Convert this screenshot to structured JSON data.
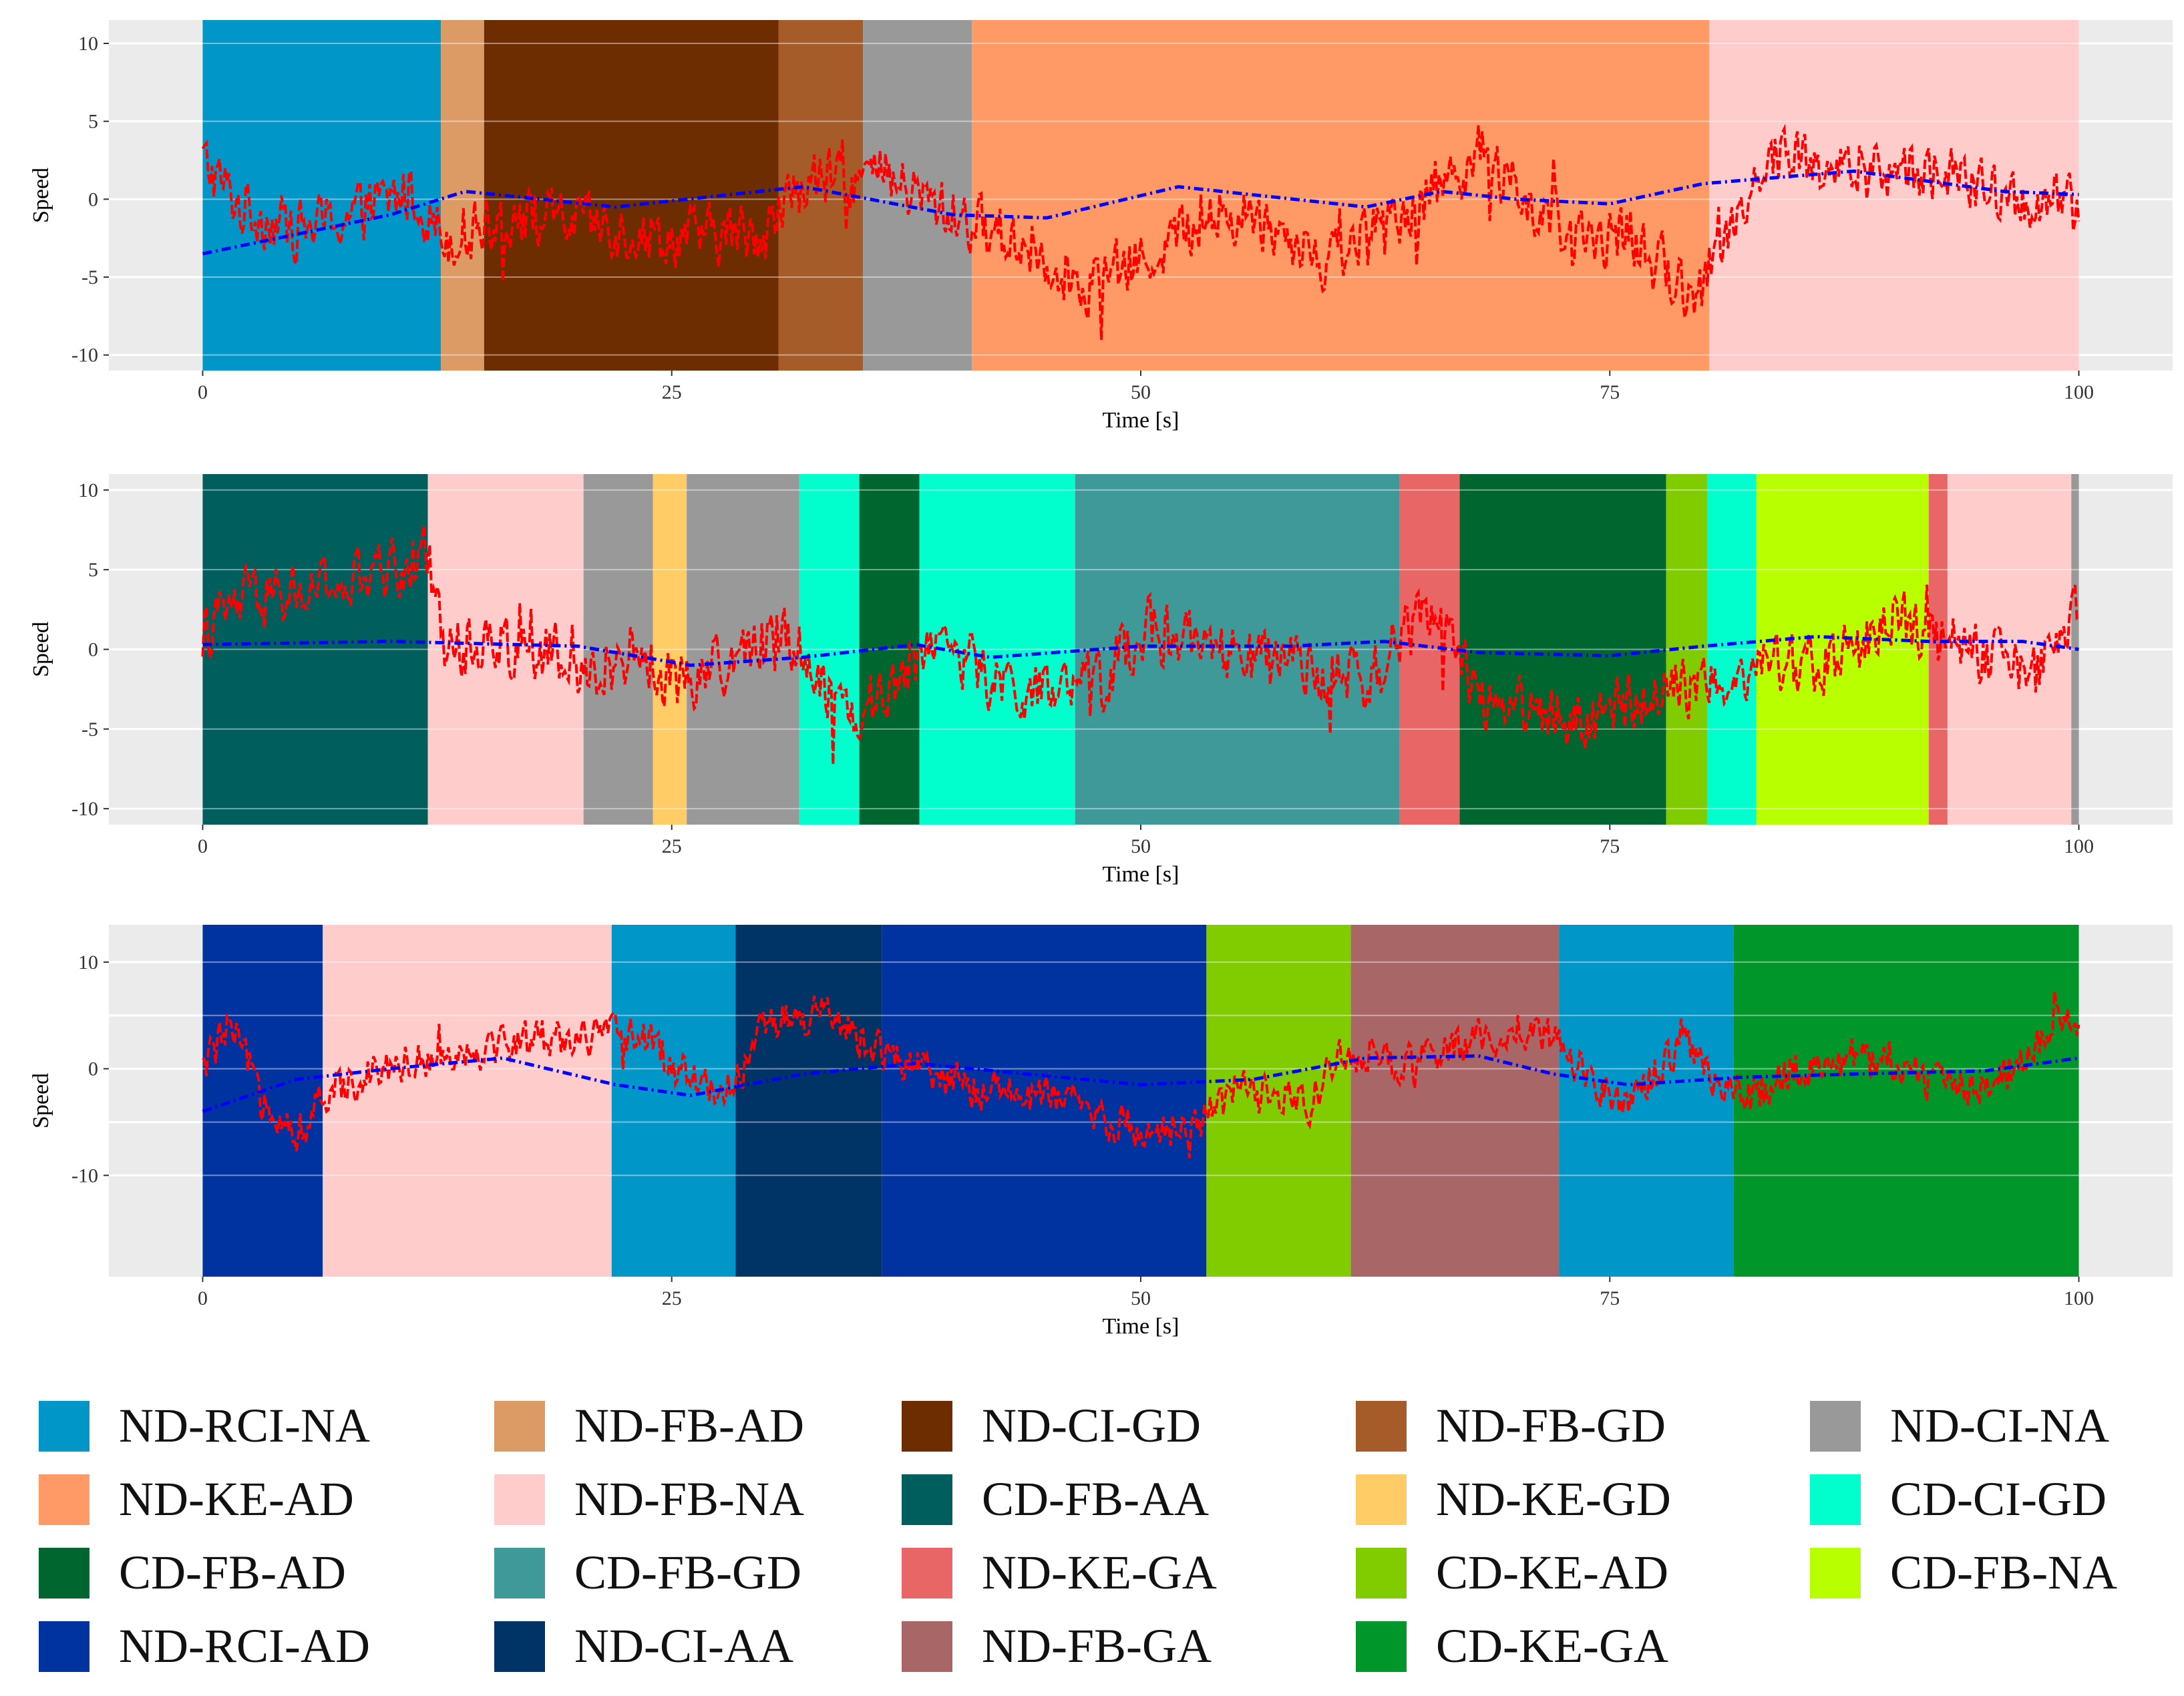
{
  "colors": {
    "panel_bg": "#EBEBEB",
    "gridline": "#FFFFFF",
    "speed_line": "#FF0000",
    "trend_line": "#0000FF",
    "ND-RCI-NA": "#0096C8",
    "ND-FB-AD": "#DC9A64",
    "ND-CI-GD": "#6E2D00",
    "ND-FB-GD": "#A65C29",
    "ND-CI-NA": "#999999",
    "ND-KE-AD": "#FF9966",
    "ND-FB-NA": "#FFCCCC",
    "CD-FB-AA": "#005F5C",
    "ND-KE-GD": "#FFCC66",
    "CD-CI-GD": "#00FFCC",
    "CD-FB-AD": "#006630",
    "CD-FB-GD": "#409999",
    "ND-KE-GA": "#E86666",
    "CD-KE-AD": "#80CC00",
    "CD-FB-NA": "#B8FF00",
    "ND-RCI-AD": "#0033A0",
    "ND-CI-AA": "#003366",
    "ND-FB-GA": "#A86666",
    "CD-KE-GA": "#00962A",
    "CD-FB-NA-alt": "#B8FF00"
  },
  "chart_data": [
    {
      "type": "line",
      "name": "panel-1",
      "xlabel": "Time [s]",
      "ylabel": "Speed",
      "xlim": [
        -5,
        105
      ],
      "ylim": [
        -11,
        11.5
      ],
      "xticks": [
        0,
        25,
        50,
        75,
        100
      ],
      "xtick_labels": [
        "0",
        "25",
        "50",
        "75",
        "100"
      ],
      "yticks": [
        10,
        5,
        0,
        -5,
        -10
      ],
      "ytick_labels": [
        "10",
        "5",
        "0",
        "-5",
        "-10"
      ],
      "segments": [
        {
          "label": "ND-RCI-NA",
          "start": 0,
          "end": 12.7
        },
        {
          "label": "ND-FB-AD",
          "start": 12.7,
          "end": 15
        },
        {
          "label": "ND-CI-GD",
          "start": 15,
          "end": 30.7
        },
        {
          "label": "ND-FB-GD",
          "start": 30.7,
          "end": 35.2
        },
        {
          "label": "ND-CI-NA",
          "start": 35.2,
          "end": 41
        },
        {
          "label": "ND-KE-AD",
          "start": 41,
          "end": 80.3
        },
        {
          "label": "ND-FB-NA",
          "start": 80.3,
          "end": 100
        }
      ],
      "speed_profile": [
        [
          0,
          2.5
        ],
        [
          2,
          -0.5
        ],
        [
          5,
          -2
        ],
        [
          8,
          -1
        ],
        [
          11,
          0.5
        ],
        [
          13,
          -2.5
        ],
        [
          16,
          -1
        ],
        [
          20,
          -1.5
        ],
        [
          25,
          -2.5
        ],
        [
          30,
          -2
        ],
        [
          32,
          1
        ],
        [
          36,
          1.5
        ],
        [
          40,
          -1
        ],
        [
          44,
          -3
        ],
        [
          47,
          -5.5
        ],
        [
          50,
          -4
        ],
        [
          53,
          -1.5
        ],
        [
          56,
          -1
        ],
        [
          60,
          -4
        ],
        [
          63,
          -1.5
        ],
        [
          66,
          1
        ],
        [
          68,
          3
        ],
        [
          70,
          0.5
        ],
        [
          73,
          -3
        ],
        [
          76,
          -2
        ],
        [
          78,
          -5
        ],
        [
          80,
          -6
        ],
        [
          82,
          0
        ],
        [
          84,
          3
        ],
        [
          88,
          1.5
        ],
        [
          92,
          2
        ],
        [
          96,
          0
        ],
        [
          100,
          -0.5
        ]
      ],
      "trend_profile": [
        [
          0,
          -3.5
        ],
        [
          10,
          -1
        ],
        [
          14,
          0.5
        ],
        [
          22,
          -0.5
        ],
        [
          32,
          0.8
        ],
        [
          40,
          -1
        ],
        [
          45,
          -1.2
        ],
        [
          52,
          0.8
        ],
        [
          62,
          -0.5
        ],
        [
          66,
          0.5
        ],
        [
          70,
          0
        ],
        [
          75,
          -0.3
        ],
        [
          80,
          1
        ],
        [
          88,
          1.8
        ],
        [
          96,
          0.5
        ],
        [
          100,
          0.3
        ]
      ]
    },
    {
      "type": "line",
      "name": "panel-2",
      "xlabel": "Time [s]",
      "ylabel": "Speed",
      "xlim": [
        -5,
        105
      ],
      "ylim": [
        -11,
        11
      ],
      "xticks": [
        0,
        25,
        50,
        75,
        100
      ],
      "xtick_labels": [
        "0",
        "25",
        "50",
        "75",
        "100"
      ],
      "yticks": [
        10,
        5,
        0,
        -5,
        -10
      ],
      "ytick_labels": [
        "10",
        "5",
        "0",
        "-5",
        "-10"
      ],
      "segments": [
        {
          "label": "CD-FB-AA",
          "start": 0,
          "end": 12
        },
        {
          "label": "ND-FB-NA",
          "start": 12,
          "end": 20.3
        },
        {
          "label": "ND-CI-NA",
          "start": 20.3,
          "end": 24
        },
        {
          "label": "ND-KE-GD",
          "start": 24,
          "end": 25.8
        },
        {
          "label": "ND-CI-NA",
          "start": 25.8,
          "end": 31.8
        },
        {
          "label": "CD-CI-GD",
          "start": 31.8,
          "end": 35
        },
        {
          "label": "CD-FB-AD",
          "start": 35,
          "end": 38.2
        },
        {
          "label": "CD-CI-GD",
          "start": 38.2,
          "end": 46.5
        },
        {
          "label": "CD-FB-GD",
          "start": 46.5,
          "end": 63.8
        },
        {
          "label": "ND-KE-GA",
          "start": 63.8,
          "end": 67
        },
        {
          "label": "CD-FB-AD",
          "start": 67,
          "end": 78
        },
        {
          "label": "CD-KE-AD",
          "start": 78,
          "end": 80.2
        },
        {
          "label": "CD-CI-GD",
          "start": 80.2,
          "end": 82.8
        },
        {
          "label": "CD-FB-NA",
          "start": 82.8,
          "end": 92
        },
        {
          "label": "ND-KE-GA",
          "start": 92,
          "end": 93
        },
        {
          "label": "ND-FB-NA",
          "start": 93,
          "end": 99.6
        },
        {
          "label": "ND-CI-NA",
          "start": 99.6,
          "end": 100
        }
      ],
      "speed_profile": [
        [
          0,
          1
        ],
        [
          2,
          3
        ],
        [
          5,
          3.5
        ],
        [
          8,
          4
        ],
        [
          11,
          5.5
        ],
        [
          12,
          6
        ],
        [
          13,
          0
        ],
        [
          15,
          0.5
        ],
        [
          18,
          0
        ],
        [
          20,
          -2
        ],
        [
          23,
          0
        ],
        [
          25,
          -2
        ],
        [
          28,
          -1
        ],
        [
          31,
          1.5
        ],
        [
          33,
          -2
        ],
        [
          35,
          -4
        ],
        [
          37,
          -2
        ],
        [
          39,
          1
        ],
        [
          42,
          -2
        ],
        [
          45,
          -3
        ],
        [
          48,
          -2
        ],
        [
          50,
          1.5
        ],
        [
          53,
          0
        ],
        [
          57,
          -1
        ],
        [
          60,
          -1.5
        ],
        [
          62,
          -2.5
        ],
        [
          64,
          1
        ],
        [
          66,
          2
        ],
        [
          68,
          -3
        ],
        [
          70,
          -3.5
        ],
        [
          74,
          -4.5
        ],
        [
          77,
          -3
        ],
        [
          80,
          -2
        ],
        [
          83,
          -1
        ],
        [
          86,
          -1
        ],
        [
          88,
          0
        ],
        [
          90,
          2
        ],
        [
          92,
          1
        ],
        [
          95,
          -0.5
        ],
        [
          98,
          -1.5
        ],
        [
          100,
          2
        ]
      ],
      "trend_profile": [
        [
          0,
          0.3
        ],
        [
          10,
          0.5
        ],
        [
          20,
          0.2
        ],
        [
          26,
          -1
        ],
        [
          32,
          -0.5
        ],
        [
          38,
          0.3
        ],
        [
          42,
          -0.5
        ],
        [
          50,
          0.2
        ],
        [
          58,
          0.2
        ],
        [
          63,
          0.5
        ],
        [
          68,
          -0.2
        ],
        [
          75,
          -0.4
        ],
        [
          80,
          0.2
        ],
        [
          86,
          0.8
        ],
        [
          92,
          0.5
        ],
        [
          97,
          0.5
        ],
        [
          100,
          0
        ]
      ]
    },
    {
      "type": "line",
      "name": "panel-3",
      "xlabel": "Time [s]",
      "ylabel": "Speed",
      "xlim": [
        -5,
        105
      ],
      "ylim": [
        -19.5,
        13.5
      ],
      "xticks": [
        0,
        25,
        50,
        75,
        100
      ],
      "xtick_labels": [
        "0",
        "25",
        "50",
        "75",
        "100"
      ],
      "yticks": [
        10,
        0,
        -10
      ],
      "ytick_labels": [
        "10",
        "0",
        "-10"
      ],
      "extra_gridlines": [
        5,
        -5
      ],
      "segments": [
        {
          "label": "ND-RCI-AD",
          "start": 0,
          "end": 6.4
        },
        {
          "label": "ND-FB-NA",
          "start": 6.4,
          "end": 21.8
        },
        {
          "label": "ND-RCI-NA",
          "start": 21.8,
          "end": 28.4
        },
        {
          "label": "ND-CI-AA",
          "start": 28.4,
          "end": 36.2
        },
        {
          "label": "ND-RCI-AD",
          "start": 36.2,
          "end": 53.5
        },
        {
          "label": "CD-KE-AD",
          "start": 53.5,
          "end": 61.2
        },
        {
          "label": "ND-FB-GA",
          "start": 61.2,
          "end": 72.3
        },
        {
          "label": "ND-RCI-NA",
          "start": 72.3,
          "end": 81.6
        },
        {
          "label": "CD-KE-GA",
          "start": 81.6,
          "end": 100
        }
      ],
      "speed_profile": [
        [
          0,
          0
        ],
        [
          1.5,
          4
        ],
        [
          3,
          -2
        ],
        [
          5,
          -6
        ],
        [
          7,
          -2
        ],
        [
          9,
          0
        ],
        [
          12,
          1
        ],
        [
          15,
          2
        ],
        [
          18,
          3
        ],
        [
          21,
          3
        ],
        [
          23,
          3.5
        ],
        [
          26,
          -1
        ],
        [
          28,
          -2
        ],
        [
          30,
          4
        ],
        [
          33,
          5
        ],
        [
          36,
          2
        ],
        [
          39,
          -1
        ],
        [
          42,
          -2
        ],
        [
          46,
          -3
        ],
        [
          50,
          -6
        ],
        [
          53,
          -5
        ],
        [
          55,
          -2
        ],
        [
          57,
          -3
        ],
        [
          59,
          -3
        ],
        [
          61,
          2
        ],
        [
          64,
          0
        ],
        [
          67,
          2
        ],
        [
          70,
          4
        ],
        [
          72,
          3
        ],
        [
          74,
          -1
        ],
        [
          76,
          -3
        ],
        [
          79,
          2
        ],
        [
          82,
          -3
        ],
        [
          85,
          0
        ],
        [
          88,
          1
        ],
        [
          92,
          -1
        ],
        [
          95,
          -2
        ],
        [
          98,
          3
        ],
        [
          100,
          5
        ]
      ],
      "trend_profile": [
        [
          0,
          -4
        ],
        [
          5,
          -1
        ],
        [
          10,
          0
        ],
        [
          16,
          1
        ],
        [
          22,
          -1.5
        ],
        [
          26,
          -2.5
        ],
        [
          32,
          -0.5
        ],
        [
          38,
          0.5
        ],
        [
          44,
          -0.5
        ],
        [
          50,
          -1.5
        ],
        [
          56,
          -1
        ],
        [
          62,
          1
        ],
        [
          68,
          1.2
        ],
        [
          72,
          -0.5
        ],
        [
          76,
          -1.5
        ],
        [
          82,
          -0.8
        ],
        [
          88,
          -0.5
        ],
        [
          95,
          -0.2
        ],
        [
          100,
          1
        ]
      ]
    }
  ],
  "legend": {
    "items": [
      {
        "label": "ND-RCI-NA",
        "color": "#0096C8"
      },
      {
        "label": "ND-FB-AD",
        "color": "#DC9A64"
      },
      {
        "label": "ND-CI-GD",
        "color": "#6E2D00"
      },
      {
        "label": "ND-FB-GD",
        "color": "#A65C29"
      },
      {
        "label": "ND-CI-NA",
        "color": "#999999"
      },
      {
        "label": "ND-KE-AD",
        "color": "#FF9966"
      },
      {
        "label": "ND-FB-NA",
        "color": "#FFCCCC"
      },
      {
        "label": "CD-FB-AA",
        "color": "#005F5C"
      },
      {
        "label": "ND-KE-GD",
        "color": "#FFCC66"
      },
      {
        "label": "CD-CI-GD",
        "color": "#00FFCC"
      },
      {
        "label": "CD-FB-AD",
        "color": "#006630"
      },
      {
        "label": "CD-FB-GD",
        "color": "#409999"
      },
      {
        "label": "ND-KE-GA",
        "color": "#E86666"
      },
      {
        "label": "CD-KE-AD",
        "color": "#80CC00"
      },
      {
        "label": "CD-FB-NA",
        "color": "#B8FF00"
      },
      {
        "label": "ND-RCI-AD",
        "color": "#0033A0"
      },
      {
        "label": "ND-CI-AA",
        "color": "#003366"
      },
      {
        "label": "ND-FB-GA",
        "color": "#A86666"
      },
      {
        "label": "CD-KE-GA",
        "color": "#00962A"
      }
    ]
  }
}
